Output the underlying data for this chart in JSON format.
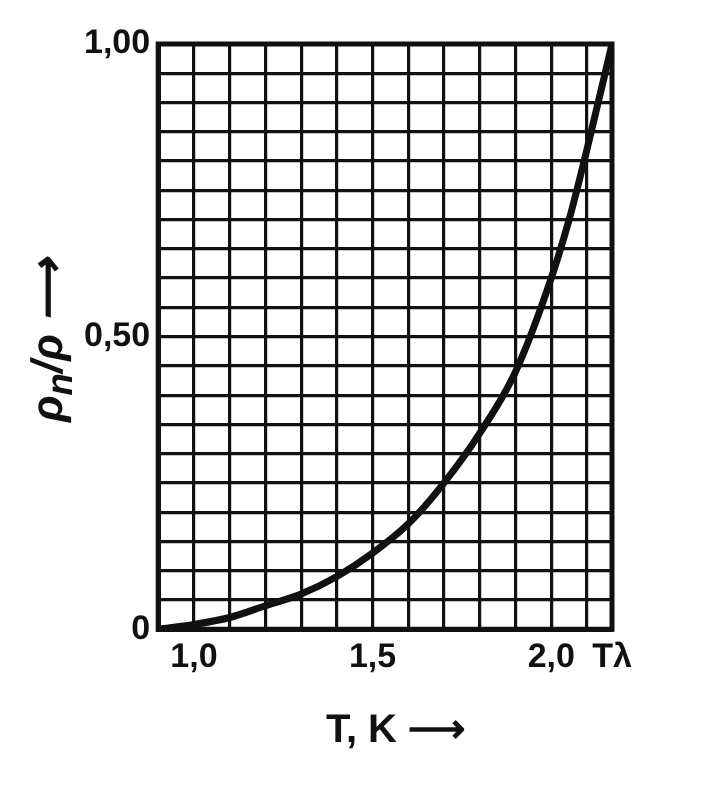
{
  "chart_data": {
    "type": "line",
    "xlabel": "T, K ⟶",
    "ylabel": "ρ$_{n}$/ρ ⟶",
    "x": [
      0.9,
      1.0,
      1.1,
      1.2,
      1.3,
      1.4,
      1.5,
      1.6,
      1.7,
      1.8,
      1.9,
      2.0,
      2.05,
      2.1,
      2.17
    ],
    "series": [
      {
        "color": "#111111",
        "values": [
          0,
          0.008,
          0.02,
          0.04,
          0.06,
          0.09,
          0.13,
          0.18,
          0.25,
          0.335,
          0.44,
          0.6,
          0.7,
          0.82,
          1.0
        ]
      }
    ],
    "xlim": [
      0.9,
      2.17
    ],
    "ylim": [
      0,
      1
    ],
    "xticks": [
      {
        "value": 0.9,
        "label": null
      },
      {
        "value": 1.0,
        "label": "1,0"
      },
      {
        "value": 1.1,
        "label": null
      },
      {
        "value": 1.2,
        "label": null
      },
      {
        "value": 1.3,
        "label": null
      },
      {
        "value": 1.4,
        "label": null
      },
      {
        "value": 1.5,
        "label": "1,5"
      },
      {
        "value": 1.6,
        "label": null
      },
      {
        "value": 1.7,
        "label": null
      },
      {
        "value": 1.8,
        "label": null
      },
      {
        "value": 1.9,
        "label": null
      },
      {
        "value": 2.0,
        "label": "2,0"
      },
      {
        "value": 2.1,
        "label": null
      },
      {
        "value": 2.17,
        "label": "Tλ"
      }
    ],
    "yticks": [
      0,
      {
        "value": 0.05,
        "label": null
      },
      {
        "value": 0.1,
        "label": null
      },
      {
        "value": 0.15,
        "label": null
      },
      {
        "value": 0.2,
        "label": null
      },
      {
        "value": 0.25,
        "label": null
      },
      {
        "value": 0.3,
        "label": null
      },
      {
        "value": 0.35,
        "label": null
      },
      {
        "value": 0.4,
        "label": null
      },
      {
        "value": 0.45,
        "label": null
      },
      {
        "value": 0.5,
        "label": "0,50"
      },
      {
        "value": 0.55,
        "label": null
      },
      {
        "value": 0.6,
        "label": null
      },
      {
        "value": 0.65,
        "label": null
      },
      {
        "value": 0.7,
        "label": null
      },
      {
        "value": 0.75,
        "label": null
      },
      {
        "value": 0.8,
        "label": null
      },
      {
        "value": 0.85,
        "label": null
      },
      {
        "value": 0.9,
        "label": null
      },
      {
        "value": 0.95,
        "label": null
      },
      {
        "value": 1,
        "label": "1,00"
      }
    ],
    "grid": true,
    "legend": false,
    "marker": "none",
    "line_style": "solid"
  }
}
